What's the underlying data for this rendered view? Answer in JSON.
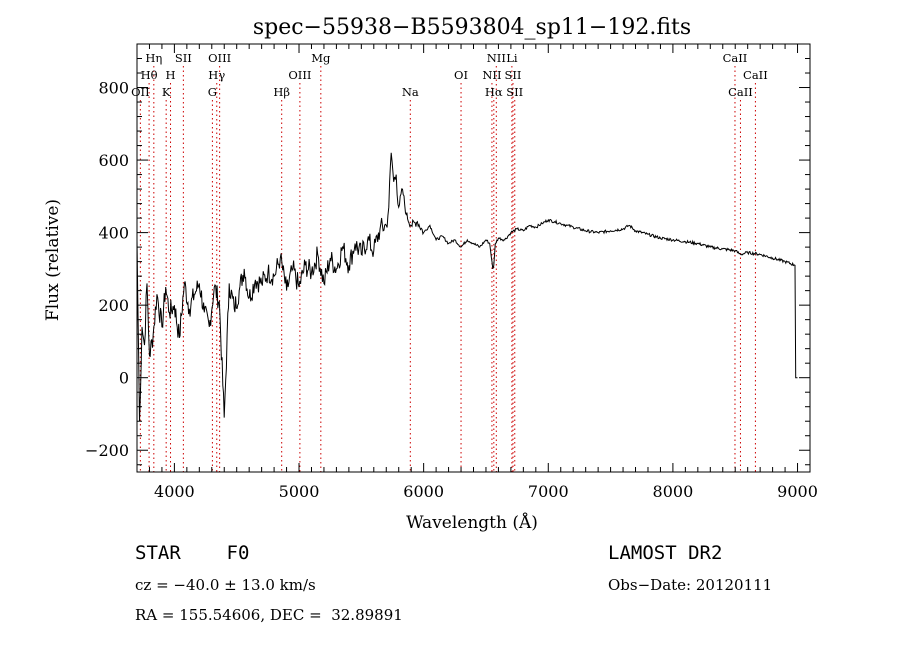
{
  "chart_data": {
    "type": "line",
    "title": "spec−55938−B5593804_sp11−192.fits",
    "xlabel": "Wavelength (Å)",
    "ylabel": "Flux (relative)",
    "xlim": [
      3700,
      9100
    ],
    "ylim": [
      -260,
      920
    ],
    "x_ticks": [
      4000,
      5000,
      6000,
      7000,
      8000,
      9000
    ],
    "x_tick_labels": [
      "4000",
      "5000",
      "6000",
      "7000",
      "8000",
      "9000"
    ],
    "y_ticks": [
      -200,
      0,
      200,
      400,
      600,
      800
    ],
    "y_tick_labels": [
      "−200",
      "0",
      "200",
      "400",
      "600",
      "800"
    ],
    "grid": false,
    "series": [
      {
        "x": [
          3700,
          3720,
          3740,
          3760,
          3780,
          3800,
          3830,
          3860,
          3900,
          3930,
          3960,
          4000,
          4040,
          4080,
          4120,
          4160,
          4200,
          4240,
          4280,
          4320,
          4360,
          4400,
          4440,
          4480,
          4520,
          4560,
          4600,
          4650,
          4700,
          4750,
          4800,
          4850,
          4900,
          4950,
          5000,
          5050,
          5100,
          5150,
          5200,
          5250,
          5300,
          5350,
          5400,
          5450,
          5500,
          5550,
          5600,
          5650,
          5700,
          5720,
          5740,
          5760,
          5780,
          5800,
          5830,
          5860,
          5900,
          5950,
          6000,
          6050,
          6100,
          6150,
          6200,
          6250,
          6300,
          6350,
          6400,
          6450,
          6500,
          6530,
          6555,
          6563,
          6575,
          6600,
          6650,
          6700,
          6750,
          6800,
          6850,
          6900,
          6950,
          7000,
          7050,
          7100,
          7150,
          7200,
          7300,
          7400,
          7500,
          7600,
          7650,
          7700,
          7800,
          7900,
          8000,
          8100,
          8200,
          8300,
          8400,
          8500,
          8542,
          8600,
          8700,
          8800,
          8900,
          8980,
          8985,
          9000
        ],
        "values": [
          380,
          -120,
          140,
          90,
          260,
          60,
          120,
          230,
          140,
          250,
          180,
          200,
          110,
          260,
          190,
          230,
          260,
          180,
          140,
          250,
          210,
          -110,
          260,
          190,
          240,
          300,
          220,
          270,
          260,
          290,
          280,
          330,
          240,
          300,
          250,
          310,
          290,
          340,
          260,
          330,
          300,
          360,
          310,
          370,
          340,
          380,
          350,
          410,
          420,
          470,
          620,
          540,
          560,
          470,
          520,
          450,
          420,
          430,
          400,
          420,
          380,
          390,
          370,
          380,
          360,
          380,
          370,
          360,
          380,
          370,
          300,
          310,
          370,
          385,
          380,
          400,
          410,
          405,
          420,
          415,
          425,
          435,
          430,
          425,
          420,
          415,
          405,
          400,
          405,
          410,
          420,
          405,
          395,
          385,
          380,
          375,
          370,
          360,
          355,
          350,
          340,
          345,
          340,
          330,
          320,
          310,
          0,
          0
        ]
      }
    ],
    "line_marks": [
      {
        "label": "Hη",
        "x": 3835,
        "row": 0
      },
      {
        "label": "Hθ",
        "x": 3797,
        "row": 1
      },
      {
        "label": "OII",
        "x": 3727,
        "row": 2
      },
      {
        "label": "SII",
        "x": 4072,
        "row": 0
      },
      {
        "label": "H",
        "x": 3969,
        "row": 1
      },
      {
        "label": "K",
        "x": 3934,
        "row": 2
      },
      {
        "label": "OIII",
        "x": 4363,
        "row": 0
      },
      {
        "label": "Hγ",
        "x": 4340,
        "row": 1
      },
      {
        "label": "G",
        "x": 4305,
        "row": 2
      },
      {
        "label": "Mg",
        "x": 5175,
        "row": 0
      },
      {
        "label": "OIII",
        "x": 5007,
        "row": 1
      },
      {
        "label": "Hβ",
        "x": 4861,
        "row": 2
      },
      {
        "label": "Na",
        "x": 5893,
        "row": 2
      },
      {
        "label": "OI",
        "x": 6300,
        "row": 1
      },
      {
        "label": "NII",
        "x": 6583,
        "row": 0
      },
      {
        "label": "Li",
        "x": 6708,
        "row": 0
      },
      {
        "label": "NII",
        "x": 6548,
        "row": 1
      },
      {
        "label": "SII",
        "x": 6717,
        "row": 1
      },
      {
        "label": "Hα",
        "x": 6563,
        "row": 2
      },
      {
        "label": "SII",
        "x": 6731,
        "row": 2
      },
      {
        "label": "CaII",
        "x": 8498,
        "row": 0
      },
      {
        "label": "CaII",
        "x": 8662,
        "row": 1
      },
      {
        "label": "CaII",
        "x": 8542,
        "row": 2
      }
    ],
    "colors": {
      "spectrum": "#000000",
      "line_marks": "#cc0000",
      "axes": "#000000"
    }
  },
  "info": {
    "class_text": "STAR    F0",
    "survey": "LAMOST DR2",
    "redshift": "cz = −40.0 ± 13.0 km/s",
    "obs_date": "Obs−Date: 20120111",
    "coords": "RA = 155.54606, DEC =  32.89891"
  }
}
